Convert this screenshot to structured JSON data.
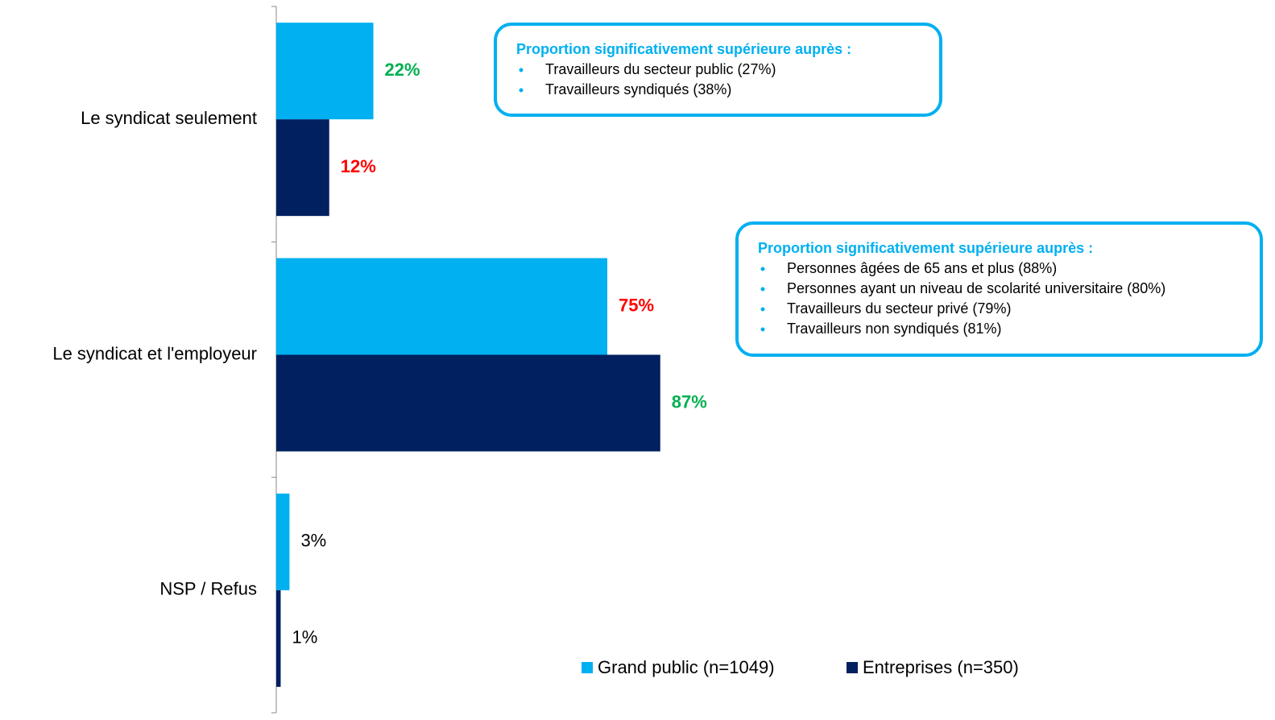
{
  "chart_data": {
    "type": "barh",
    "categories": [
      "Le syndicat seulement",
      "Le syndicat et l'employeur",
      "NSP / Refus"
    ],
    "series": [
      {
        "name": "Grand public (n=1049)",
        "color": "#00b0f0",
        "values": [
          22,
          75,
          3
        ],
        "value_labels": [
          "22%",
          "75%",
          "3%"
        ],
        "value_label_colors": [
          "#00b050",
          "#ff0000",
          "#000000"
        ],
        "value_label_bold": [
          true,
          true,
          false
        ]
      },
      {
        "name": "Entreprises (n=350)",
        "color": "#002060",
        "values": [
          12,
          87,
          1
        ],
        "value_labels": [
          "12%",
          "87%",
          "1%"
        ],
        "value_label_colors": [
          "#ff0000",
          "#00b050",
          "#000000"
        ],
        "value_label_bold": [
          true,
          true,
          false
        ]
      }
    ],
    "xlim": [
      0,
      100
    ],
    "legend": "bottom-right",
    "annotations": [
      {
        "title": "Proportion significativement supérieure auprès :",
        "items": [
          "Travailleurs du secteur public (27%)",
          "Travailleurs syndiqués (38%)"
        ]
      },
      {
        "title": "Proportion significativement supérieure auprès :",
        "items": [
          "Personnes âgées de 65 ans et plus (88%)",
          "Personnes ayant un niveau de scolarité universitaire (80%)",
          "Travailleurs du secteur privé (79%)",
          "Travailleurs non syndiqués (81%)"
        ]
      }
    ]
  }
}
